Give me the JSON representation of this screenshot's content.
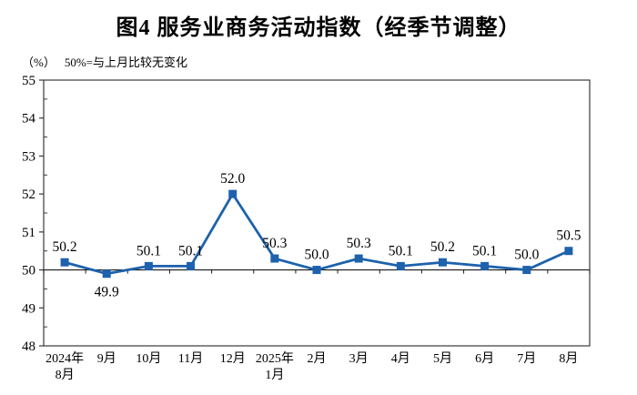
{
  "page": {
    "background": "#ffffff"
  },
  "chart_data": {
    "type": "line",
    "title": "图4 服务业商务活动指数（经季节调整）",
    "unit_label": "（%）",
    "subtitle_note": "50%=与上月比较无变化",
    "categories": [
      "2024年\n8月",
      "9月",
      "10月",
      "11月",
      "12月",
      "2025年\n1月",
      "2月",
      "3月",
      "4月",
      "5月",
      "6月",
      "7月",
      "8月"
    ],
    "values": [
      50.2,
      49.9,
      50.1,
      50.1,
      52.0,
      50.3,
      50.0,
      50.3,
      50.1,
      50.2,
      50.1,
      50.0,
      50.5
    ],
    "data_labels": [
      "50.2",
      "49.9",
      "50.1",
      "50.1",
      "52.0",
      "50.3",
      "50.0",
      "50.3",
      "50.1",
      "50.2",
      "50.1",
      "50.0",
      "50.5"
    ],
    "label_side": [
      "above",
      "below",
      "above",
      "above",
      "above",
      "above",
      "above",
      "above",
      "above",
      "above",
      "above",
      "above",
      "above"
    ],
    "ylim": [
      48,
      55
    ],
    "ytick_step": 1,
    "yticks": [
      48,
      49,
      50,
      51,
      52,
      53,
      54,
      55
    ],
    "reference_value": 50,
    "grid": false,
    "legend": "none",
    "line_color": "#1E62AC",
    "marker": "square",
    "axis_color": "#3a3a3a",
    "ref_line_color": "#1a1a1a",
    "label_color": "#000000"
  }
}
